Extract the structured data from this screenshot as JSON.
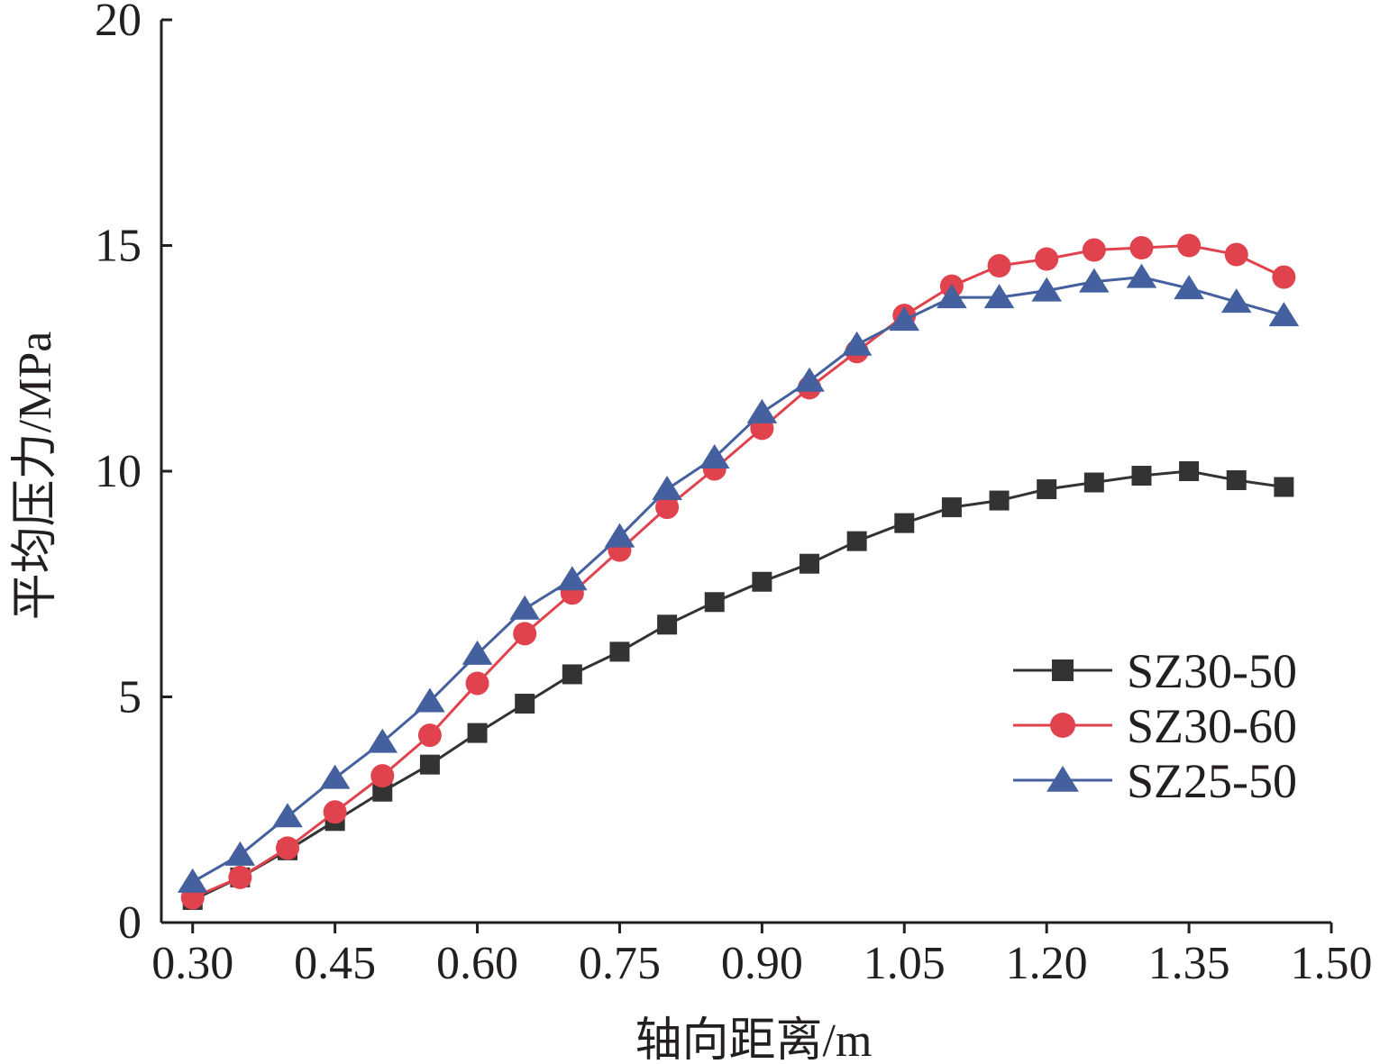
{
  "chart_data": {
    "type": "line",
    "xlabel": "轴向距离/m",
    "ylabel": "平均压力/MPa",
    "xlim": [
      0.267,
      1.5
    ],
    "ylim": [
      0,
      20
    ],
    "x_ticks": [
      0.3,
      0.45,
      0.6,
      0.75,
      0.9,
      1.05,
      1.2,
      1.35,
      1.5
    ],
    "x_tick_labels": [
      "0.30",
      "0.45",
      "0.60",
      "0.75",
      "0.90",
      "1.05",
      "1.20",
      "1.35",
      "1.50"
    ],
    "y_ticks": [
      0,
      5,
      10,
      15,
      20
    ],
    "y_tick_labels": [
      "0",
      "5",
      "10",
      "15",
      "20"
    ],
    "grid": false,
    "legend_position": "lower-right",
    "x": [
      0.3,
      0.35,
      0.4,
      0.45,
      0.5,
      0.55,
      0.6,
      0.65,
      0.7,
      0.75,
      0.8,
      0.85,
      0.9,
      0.95,
      1.0,
      1.05,
      1.1,
      1.15,
      1.2,
      1.25,
      1.3,
      1.35,
      1.4,
      1.45
    ],
    "series": [
      {
        "name": "SZ30-50",
        "color": "#333333",
        "marker": "square",
        "values": [
          0.5,
          1.0,
          1.6,
          2.25,
          2.9,
          3.5,
          4.2,
          4.85,
          5.5,
          6.0,
          6.6,
          7.1,
          7.55,
          7.95,
          8.45,
          8.85,
          9.2,
          9.35,
          9.6,
          9.75,
          9.9,
          10.0,
          9.8,
          9.65
        ]
      },
      {
        "name": "SZ30-60",
        "color": "#e0434d",
        "marker": "circle",
        "values": [
          0.55,
          1.0,
          1.65,
          2.45,
          3.25,
          4.15,
          5.3,
          6.4,
          7.3,
          8.25,
          9.2,
          10.05,
          10.95,
          11.85,
          12.65,
          13.45,
          14.1,
          14.55,
          14.7,
          14.9,
          14.95,
          15.0,
          14.8,
          14.3
        ]
      },
      {
        "name": "SZ25-50",
        "color": "#44609e",
        "marker": "triangle",
        "values": [
          0.9,
          1.5,
          2.35,
          3.2,
          4.0,
          4.9,
          5.95,
          6.95,
          7.6,
          8.55,
          9.6,
          10.3,
          11.3,
          12.0,
          12.8,
          13.35,
          13.85,
          13.85,
          14.0,
          14.2,
          14.3,
          14.05,
          13.75,
          13.45
        ]
      }
    ]
  }
}
